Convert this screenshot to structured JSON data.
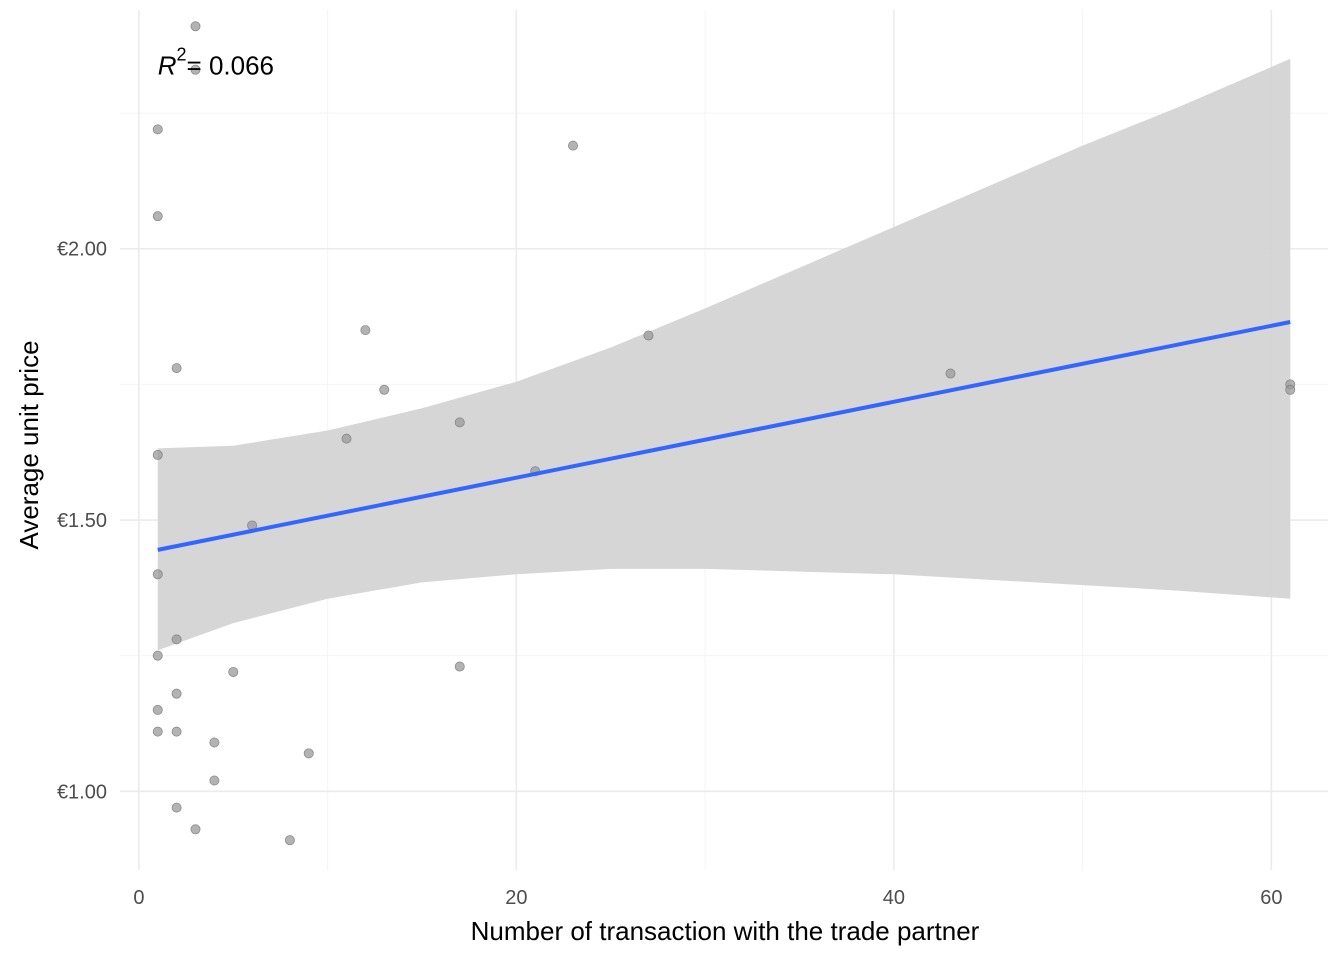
{
  "chart_data": {
    "type": "scatter",
    "xlabel": "Number of transaction with the trade partner",
    "ylabel": "Average unit price",
    "xlim": [
      -1,
      63
    ],
    "ylim": [
      0.855,
      2.44
    ],
    "x_ticks": [
      {
        "value": 0,
        "label": "0"
      },
      {
        "value": 20,
        "label": "20"
      },
      {
        "value": 40,
        "label": "40"
      },
      {
        "value": 60,
        "label": "60"
      }
    ],
    "x_minor_ticks": [
      10,
      30,
      50
    ],
    "y_ticks": [
      {
        "value": 1.0,
        "label": "€1.00"
      },
      {
        "value": 1.5,
        "label": "€1.50"
      },
      {
        "value": 2.0,
        "label": "€2.00"
      }
    ],
    "y_minor_ticks": [
      1.25,
      1.75,
      2.25
    ],
    "grid": true,
    "annotation": {
      "r_symbol": "R",
      "r_exponent": "2",
      "text": "= 0.066",
      "x": 1,
      "y": 2.33
    },
    "points": [
      {
        "x": 3,
        "y": 2.41
      },
      {
        "x": 3,
        "y": 2.33
      },
      {
        "x": 1,
        "y": 2.22
      },
      {
        "x": 1,
        "y": 2.06
      },
      {
        "x": 23,
        "y": 2.19
      },
      {
        "x": 2,
        "y": 1.78
      },
      {
        "x": 12,
        "y": 1.85
      },
      {
        "x": 27,
        "y": 1.84
      },
      {
        "x": 13,
        "y": 1.74
      },
      {
        "x": 43,
        "y": 1.77
      },
      {
        "x": 61,
        "y": 1.75
      },
      {
        "x": 61,
        "y": 1.74
      },
      {
        "x": 17,
        "y": 1.68
      },
      {
        "x": 11,
        "y": 1.65
      },
      {
        "x": 1,
        "y": 1.62
      },
      {
        "x": 21,
        "y": 1.59
      },
      {
        "x": 6,
        "y": 1.49
      },
      {
        "x": 1,
        "y": 1.4
      },
      {
        "x": 2,
        "y": 1.28
      },
      {
        "x": 1,
        "y": 1.25
      },
      {
        "x": 17,
        "y": 1.23
      },
      {
        "x": 5,
        "y": 1.22
      },
      {
        "x": 2,
        "y": 1.18
      },
      {
        "x": 1,
        "y": 1.15
      },
      {
        "x": 1,
        "y": 1.11
      },
      {
        "x": 2,
        "y": 1.11
      },
      {
        "x": 4,
        "y": 1.09
      },
      {
        "x": 9,
        "y": 1.07
      },
      {
        "x": 4,
        "y": 1.02
      },
      {
        "x": 2,
        "y": 0.97
      },
      {
        "x": 3,
        "y": 0.93
      },
      {
        "x": 8,
        "y": 0.91
      }
    ],
    "fit_line": {
      "x": [
        1,
        61
      ],
      "y": [
        1.445,
        1.865
      ],
      "color": "#3366ff"
    },
    "confidence_band": {
      "color": "#d4d4d4",
      "x": [
        1,
        5,
        10,
        15,
        20,
        25,
        30,
        35,
        40,
        45,
        50,
        55,
        61
      ],
      "upper": [
        1.632,
        1.637,
        1.665,
        1.706,
        1.755,
        1.818,
        1.89,
        1.965,
        2.04,
        2.115,
        2.19,
        2.26,
        2.35
      ],
      "lower": [
        1.26,
        1.31,
        1.355,
        1.385,
        1.4,
        1.41,
        1.41,
        1.405,
        1.4,
        1.39,
        1.38,
        1.37,
        1.355
      ]
    },
    "point_color": "#9a9a9a"
  }
}
